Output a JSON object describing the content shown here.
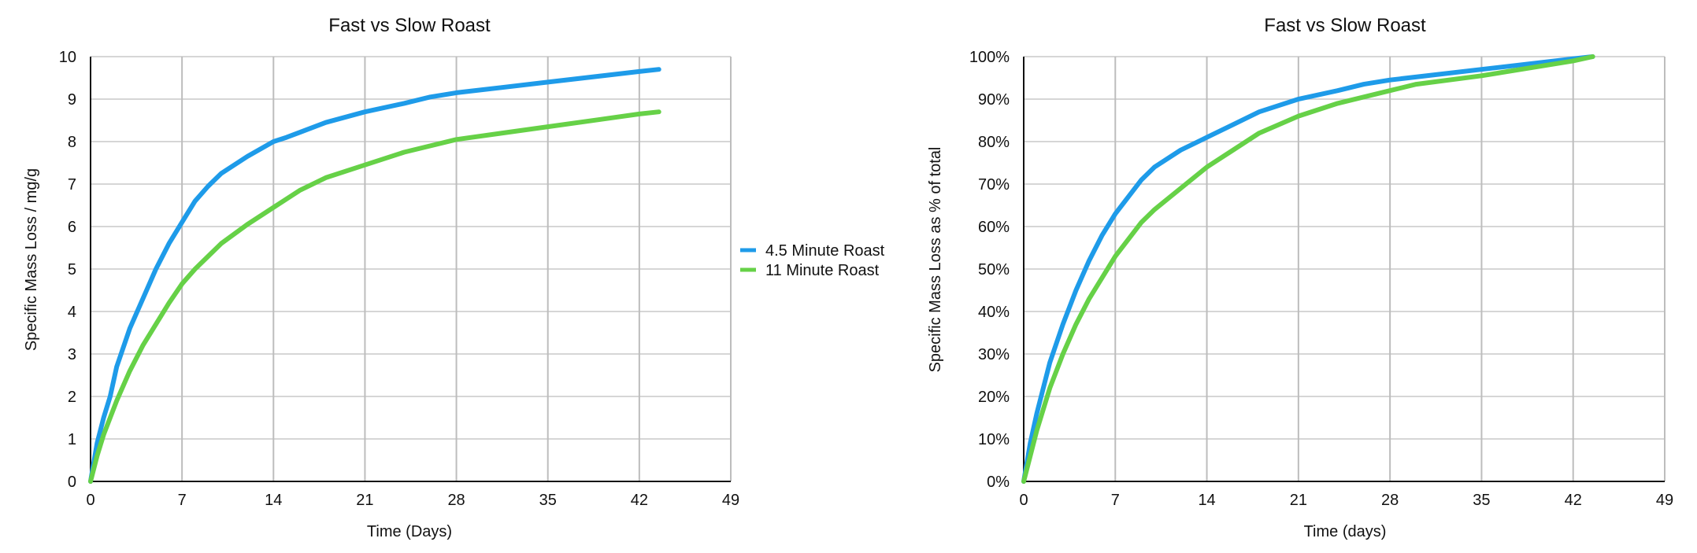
{
  "chart_data": [
    {
      "type": "line",
      "title": "Fast vs Slow Roast",
      "xlabel": "Time (Days)",
      "ylabel": "Specific Mass Loss / mg/g",
      "xlim": [
        0,
        49
      ],
      "ylim": [
        0,
        10
      ],
      "xticks": [
        "0",
        "7",
        "14",
        "21",
        "28",
        "35",
        "42",
        "49"
      ],
      "yticks": [
        "0",
        "1",
        "2",
        "3",
        "4",
        "5",
        "6",
        "7",
        "8",
        "9",
        "10"
      ],
      "grid": true,
      "legend": "right",
      "series": [
        {
          "name": "4.5 Minute Roast",
          "color": "#1e9be9",
          "x": [
            0,
            0.5,
            1,
            1.5,
            2,
            3,
            4,
            5,
            6,
            7,
            8,
            9,
            10,
            12,
            14,
            15,
            18,
            21,
            24,
            26,
            28,
            35,
            42,
            43.5
          ],
          "y": [
            0,
            0.9,
            1.5,
            2.0,
            2.7,
            3.6,
            4.3,
            5.0,
            5.6,
            6.1,
            6.6,
            6.95,
            7.25,
            7.65,
            8.0,
            8.1,
            8.45,
            8.7,
            8.9,
            9.05,
            9.15,
            9.4,
            9.65,
            9.7
          ]
        },
        {
          "name": "11 Minute Roast",
          "color": "#66d147",
          "x": [
            0,
            0.5,
            1,
            2,
            3,
            4,
            5,
            6,
            7,
            8,
            9,
            10,
            12,
            14,
            16,
            18,
            21,
            24,
            28,
            35,
            42,
            43.5
          ],
          "y": [
            0,
            0.6,
            1.1,
            1.9,
            2.6,
            3.2,
            3.7,
            4.2,
            4.65,
            5.0,
            5.3,
            5.6,
            6.05,
            6.45,
            6.85,
            7.15,
            7.45,
            7.75,
            8.05,
            8.35,
            8.65,
            8.7
          ]
        }
      ]
    },
    {
      "type": "line",
      "title": "Fast vs Slow Roast",
      "xlabel": "Time (days)",
      "ylabel": "Specific Mass Loss as % of total",
      "xlim": [
        0,
        49
      ],
      "ylim": [
        0,
        100
      ],
      "xticks": [
        "0",
        "7",
        "14",
        "21",
        "28",
        "35",
        "42",
        "49"
      ],
      "yticks": [
        "0%",
        "10%",
        "20%",
        "30%",
        "40%",
        "50%",
        "60%",
        "70%",
        "80%",
        "90%",
        "100%"
      ],
      "grid": true,
      "legend": "none",
      "series": [
        {
          "name": "4.5 Minute Roast",
          "color": "#1e9be9",
          "x": [
            0,
            0.5,
            1,
            2,
            3,
            4,
            5,
            6,
            7,
            8,
            9,
            10,
            12,
            14,
            16,
            18,
            21,
            24,
            26,
            28,
            35,
            42,
            43.5
          ],
          "y": [
            0,
            9,
            16,
            28,
            37,
            45,
            52,
            58,
            63,
            67,
            71,
            74,
            78,
            81,
            84,
            87,
            90,
            92,
            93.5,
            94.5,
            97,
            99.5,
            100
          ]
        },
        {
          "name": "11 Minute Roast",
          "color": "#66d147",
          "x": [
            0,
            1,
            2,
            3,
            4,
            5,
            6,
            7,
            8,
            9,
            10,
            12,
            14,
            16,
            18,
            21,
            24,
            28,
            30,
            35,
            42,
            43.5
          ],
          "y": [
            0,
            12,
            22,
            30,
            37,
            43,
            48,
            53,
            57,
            61,
            64,
            69,
            74,
            78,
            82,
            86,
            89,
            92,
            93.5,
            95.5,
            99,
            100
          ]
        }
      ]
    }
  ]
}
